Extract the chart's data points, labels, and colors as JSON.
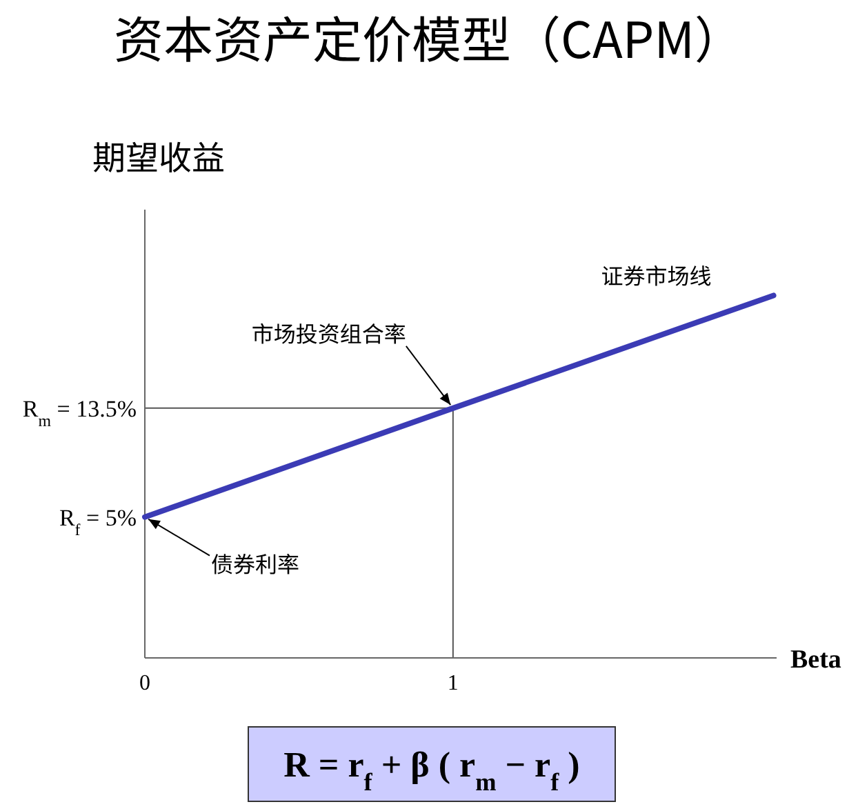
{
  "chart_data": {
    "type": "line",
    "title": "资本资产定价模型（CAPM）",
    "xlabel": "Beta",
    "ylabel": "期望收益",
    "x": [
      0,
      1,
      2.04
    ],
    "series": [
      {
        "name": "证券市场线",
        "color": "#3b3bb5",
        "values": [
          5,
          13.5,
          22.3
        ]
      }
    ],
    "xlim": [
      0,
      2.05
    ],
    "xticks": [
      0,
      1
    ],
    "ylim": [
      -6,
      29
    ],
    "yticks": [
      {
        "value": 13.5,
        "label": "R$_{m}$ = 13.5%"
      },
      {
        "value": 5,
        "label": "R$_{f}$ = 5%"
      }
    ],
    "ref_lines": [
      {
        "axis": "y",
        "value": 13.5,
        "color": "#555555"
      },
      {
        "axis": "x",
        "value": 1,
        "color": "#555555"
      }
    ],
    "annotations": [
      {
        "text": "市场投资组合率",
        "x": 1,
        "y": 13.5
      },
      {
        "text": "债券利率",
        "x": 0,
        "y": 5
      },
      "R = r$_{f}$ + β ( r$_{m}$ − r$_{f}$ )"
    ],
    "grid": false,
    "marker": "none",
    "line_style": "solid"
  }
}
